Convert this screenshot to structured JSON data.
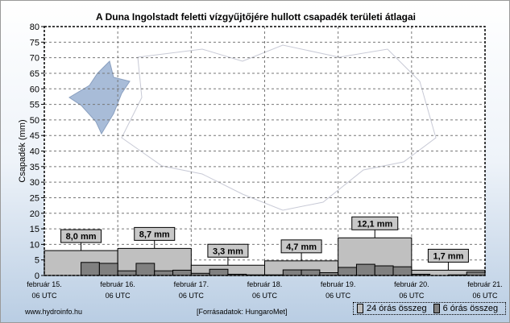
{
  "chart_data": {
    "type": "bar",
    "title": "A Duna Ingolstadt feletti vízgyűjtőjére hullott csapadék területi átlagai",
    "ylabel": "Csapadék (mm)",
    "ylim": [
      0,
      80
    ],
    "yticks": [
      0,
      5,
      10,
      15,
      20,
      25,
      30,
      35,
      40,
      45,
      50,
      55,
      60,
      65,
      70,
      75,
      80
    ],
    "xticks": [
      [
        "február 15.",
        "06 UTC"
      ],
      [
        "február 16.",
        "06 UTC"
      ],
      [
        "február 17.",
        "06 UTC"
      ],
      [
        "február 18.",
        "06 UTC"
      ],
      [
        "február 19.",
        "06 UTC"
      ],
      [
        "február 20.",
        "06 UTC"
      ],
      [
        "február 21.",
        "06 UTC"
      ]
    ],
    "grid": true,
    "legend_position": "bottom-right",
    "series": [
      {
        "name": "24 órás összeg",
        "color": "#c0c0c0",
        "values": [
          8.0,
          8.7,
          3.3,
          4.7,
          12.1,
          1.7
        ],
        "labels": [
          "8,0 mm",
          "8,7 mm",
          "3,3 mm",
          "4,7 mm",
          "12,1 mm",
          "1,7 mm"
        ]
      },
      {
        "name": "6 órás összeg",
        "color": "#808080",
        "values": [
          0,
          0,
          4.2,
          3.9,
          1.5,
          3.9,
          1.5,
          1.7,
          0.7,
          2.0,
          0.4,
          0.2,
          0.2,
          1.8,
          1.8,
          0.9,
          2.6,
          3.6,
          3.1,
          2.8,
          0.4,
          0,
          0.2,
          1.1
        ]
      }
    ]
  },
  "footer": {
    "site": "www.hydroinfo.hu",
    "source": "[Forrásadatok: HungaroMet]"
  }
}
